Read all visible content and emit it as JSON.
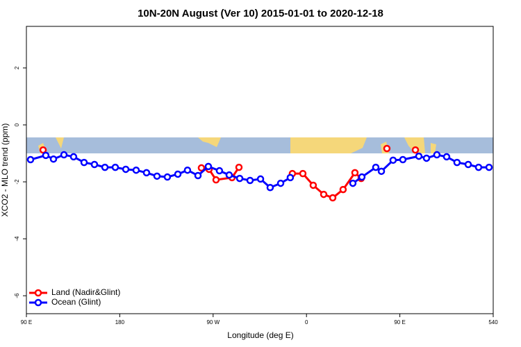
{
  "chart_data": {
    "type": "line",
    "title": "10N-20N August (Ver 10)   2015-01-01 to 2020-12-18",
    "x_label": "Longitude (deg E)",
    "y_label": "XCO2 - MLO trend (ppm)",
    "xlim": [
      90,
      540
    ],
    "ylim": [
      -6.63,
      3.46
    ],
    "xticks": [
      {
        "value": 90,
        "label": "90 E"
      },
      180,
      {
        "value": 270,
        "label": "90 W"
      },
      {
        "value": 360,
        "label": "0"
      },
      {
        "value": 450,
        "label": "90 E"
      },
      540
    ],
    "yticks": [
      -6,
      -4,
      -2,
      0,
      2
    ],
    "legend": "bottom-left",
    "series": [
      {
        "name": "Land (Nadir&Glint)",
        "color": "#ff0000",
        "x": [
          106.1,
          200,
          258.7,
          266.1,
          272.8,
          288.2,
          294.9,
          360,
          346.4,
          356.5,
          366.5,
          376.6,
          385.3,
          395.3,
          406.7,
          412.7,
          420,
          437.5,
          450,
          465.0
        ],
        "values": [
          -0.88,
          null,
          -1.51,
          -1.56,
          -1.93,
          -1.85,
          -1.49,
          null,
          -1.71,
          -1.71,
          -2.12,
          -2.44,
          -2.56,
          -2.27,
          -1.68,
          -1.88,
          null,
          -0.83,
          null,
          -0.88
        ]
      },
      {
        "name": "Ocean (Glint)",
        "color": "#0000ff",
        "x": [
          94.0,
          108.7,
          116.1,
          126.2,
          135.5,
          145.6,
          155.6,
          165.7,
          175.7,
          185.8,
          195.8,
          205.8,
          215.9,
          225.9,
          236.0,
          245.3,
          255.4,
          265.4,
          276.1,
          285.5,
          295.6,
          305.6,
          315.7,
          325.0,
          335.1,
          344.4,
          380,
          404.7,
          413.4,
          426.8,
          432.2,
          443.5,
          452.9,
          468.3,
          475.7,
          485.7,
          495.1,
          505.1,
          515.9,
          525.9,
          536.0
        ],
        "values": [
          -1.22,
          -1.07,
          -1.2,
          -1.05,
          -1.12,
          -1.32,
          -1.39,
          -1.49,
          -1.49,
          -1.56,
          -1.59,
          -1.68,
          -1.8,
          -1.83,
          -1.73,
          -1.59,
          -1.78,
          -1.46,
          -1.61,
          -1.76,
          -1.88,
          -1.95,
          -1.9,
          -2.2,
          -2.05,
          -1.85,
          null,
          -2.05,
          -1.83,
          -1.49,
          -1.63,
          -1.24,
          -1.22,
          -1.1,
          -1.17,
          -1.05,
          -1.12,
          -1.32,
          -1.39,
          -1.49,
          -1.49
        ]
      }
    ]
  }
}
